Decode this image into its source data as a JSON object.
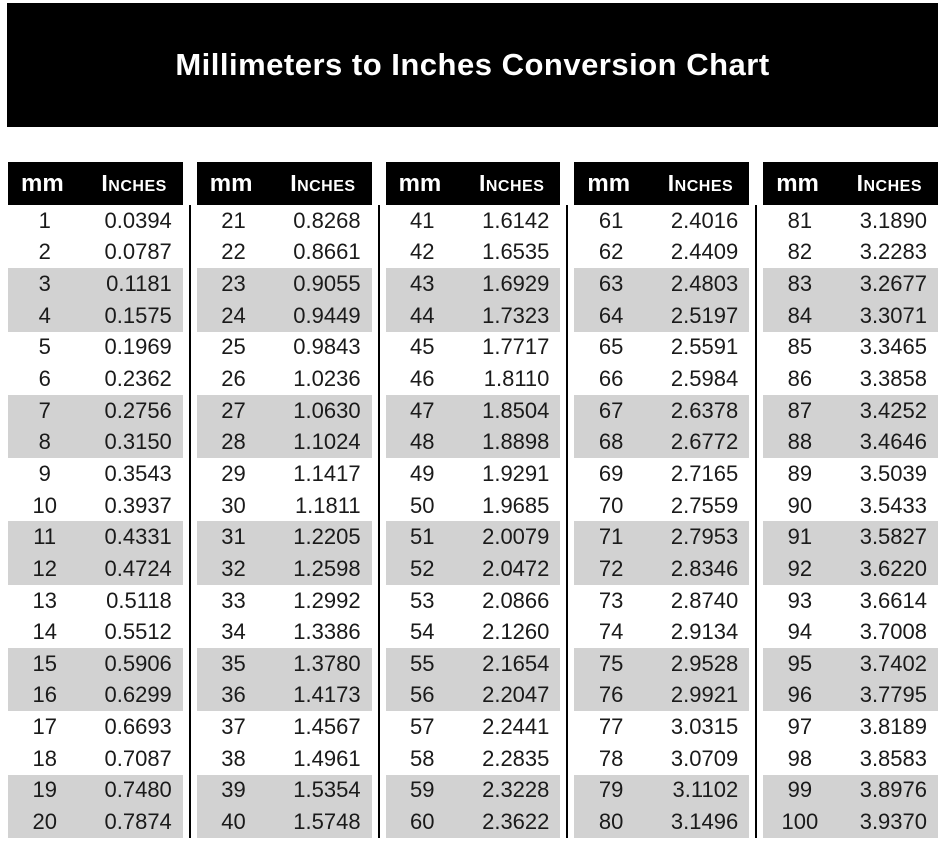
{
  "title": "Millimeters to Inches Conversion Chart",
  "table": {
    "headers": {
      "mm": "mm",
      "inches": "Inches"
    },
    "groups": [
      {
        "rows": [
          {
            "mm": "1",
            "in": "0.0394"
          },
          {
            "mm": "2",
            "in": "0.0787"
          },
          {
            "mm": "3",
            "in": "0.1181"
          },
          {
            "mm": "4",
            "in": "0.1575"
          },
          {
            "mm": "5",
            "in": "0.1969"
          },
          {
            "mm": "6",
            "in": "0.2362"
          },
          {
            "mm": "7",
            "in": "0.2756"
          },
          {
            "mm": "8",
            "in": "0.3150"
          },
          {
            "mm": "9",
            "in": "0.3543"
          },
          {
            "mm": "10",
            "in": "0.3937"
          },
          {
            "mm": "11",
            "in": "0.4331"
          },
          {
            "mm": "12",
            "in": "0.4724"
          },
          {
            "mm": "13",
            "in": "0.5118"
          },
          {
            "mm": "14",
            "in": "0.5512"
          },
          {
            "mm": "15",
            "in": "0.5906"
          },
          {
            "mm": "16",
            "in": "0.6299"
          },
          {
            "mm": "17",
            "in": "0.6693"
          },
          {
            "mm": "18",
            "in": "0.7087"
          },
          {
            "mm": "19",
            "in": "0.7480"
          },
          {
            "mm": "20",
            "in": "0.7874"
          }
        ]
      },
      {
        "rows": [
          {
            "mm": "21",
            "in": "0.8268"
          },
          {
            "mm": "22",
            "in": "0.8661"
          },
          {
            "mm": "23",
            "in": "0.9055"
          },
          {
            "mm": "24",
            "in": "0.9449"
          },
          {
            "mm": "25",
            "in": "0.9843"
          },
          {
            "mm": "26",
            "in": "1.0236"
          },
          {
            "mm": "27",
            "in": "1.0630"
          },
          {
            "mm": "28",
            "in": "1.1024"
          },
          {
            "mm": "29",
            "in": "1.1417"
          },
          {
            "mm": "30",
            "in": "1.1811"
          },
          {
            "mm": "31",
            "in": "1.2205"
          },
          {
            "mm": "32",
            "in": "1.2598"
          },
          {
            "mm": "33",
            "in": "1.2992"
          },
          {
            "mm": "34",
            "in": "1.3386"
          },
          {
            "mm": "35",
            "in": "1.3780"
          },
          {
            "mm": "36",
            "in": "1.4173"
          },
          {
            "mm": "37",
            "in": "1.4567"
          },
          {
            "mm": "38",
            "in": "1.4961"
          },
          {
            "mm": "39",
            "in": "1.5354"
          },
          {
            "mm": "40",
            "in": "1.5748"
          }
        ]
      },
      {
        "rows": [
          {
            "mm": "41",
            "in": "1.6142"
          },
          {
            "mm": "42",
            "in": "1.6535"
          },
          {
            "mm": "43",
            "in": "1.6929"
          },
          {
            "mm": "44",
            "in": "1.7323"
          },
          {
            "mm": "45",
            "in": "1.7717"
          },
          {
            "mm": "46",
            "in": "1.8110"
          },
          {
            "mm": "47",
            "in": "1.8504"
          },
          {
            "mm": "48",
            "in": "1.8898"
          },
          {
            "mm": "49",
            "in": "1.9291"
          },
          {
            "mm": "50",
            "in": "1.9685"
          },
          {
            "mm": "51",
            "in": "2.0079"
          },
          {
            "mm": "52",
            "in": "2.0472"
          },
          {
            "mm": "53",
            "in": "2.0866"
          },
          {
            "mm": "54",
            "in": "2.1260"
          },
          {
            "mm": "55",
            "in": "2.1654"
          },
          {
            "mm": "56",
            "in": "2.2047"
          },
          {
            "mm": "57",
            "in": "2.2441"
          },
          {
            "mm": "58",
            "in": "2.2835"
          },
          {
            "mm": "59",
            "in": "2.3228"
          },
          {
            "mm": "60",
            "in": "2.3622"
          }
        ]
      },
      {
        "rows": [
          {
            "mm": "61",
            "in": "2.4016"
          },
          {
            "mm": "62",
            "in": "2.4409"
          },
          {
            "mm": "63",
            "in": "2.4803"
          },
          {
            "mm": "64",
            "in": "2.5197"
          },
          {
            "mm": "65",
            "in": "2.5591"
          },
          {
            "mm": "66",
            "in": "2.5984"
          },
          {
            "mm": "67",
            "in": "2.6378"
          },
          {
            "mm": "68",
            "in": "2.6772"
          },
          {
            "mm": "69",
            "in": "2.7165"
          },
          {
            "mm": "70",
            "in": "2.7559"
          },
          {
            "mm": "71",
            "in": "2.7953"
          },
          {
            "mm": "72",
            "in": "2.8346"
          },
          {
            "mm": "73",
            "in": "2.8740"
          },
          {
            "mm": "74",
            "in": "2.9134"
          },
          {
            "mm": "75",
            "in": "2.9528"
          },
          {
            "mm": "76",
            "in": "2.9921"
          },
          {
            "mm": "77",
            "in": "3.0315"
          },
          {
            "mm": "78",
            "in": "3.0709"
          },
          {
            "mm": "79",
            "in": "3.1102"
          },
          {
            "mm": "80",
            "in": "3.1496"
          }
        ]
      },
      {
        "rows": [
          {
            "mm": "81",
            "in": "3.1890"
          },
          {
            "mm": "82",
            "in": "3.2283"
          },
          {
            "mm": "83",
            "in": "3.2677"
          },
          {
            "mm": "84",
            "in": "3.3071"
          },
          {
            "mm": "85",
            "in": "3.3465"
          },
          {
            "mm": "86",
            "in": "3.3858"
          },
          {
            "mm": "87",
            "in": "3.4252"
          },
          {
            "mm": "88",
            "in": "3.4646"
          },
          {
            "mm": "89",
            "in": "3.5039"
          },
          {
            "mm": "90",
            "in": "3.5433"
          },
          {
            "mm": "91",
            "in": "3.5827"
          },
          {
            "mm": "92",
            "in": "3.6220"
          },
          {
            "mm": "93",
            "in": "3.6614"
          },
          {
            "mm": "94",
            "in": "3.7008"
          },
          {
            "mm": "95",
            "in": "3.7402"
          },
          {
            "mm": "96",
            "in": "3.7795"
          },
          {
            "mm": "97",
            "in": "3.8189"
          },
          {
            "mm": "98",
            "in": "3.8583"
          },
          {
            "mm": "99",
            "in": "3.8976"
          },
          {
            "mm": "100",
            "in": "3.9370"
          }
        ]
      }
    ]
  },
  "colors": {
    "bar_background": "#000000",
    "bar_text": "#ffffff",
    "row_stripe": "#d2d2d2",
    "body_text": "#1a1a1a"
  }
}
